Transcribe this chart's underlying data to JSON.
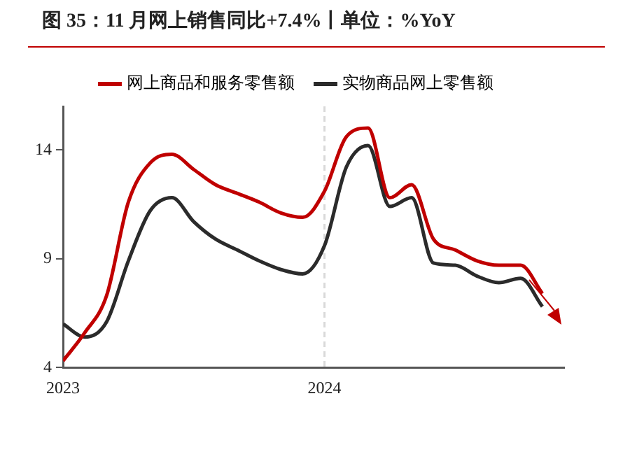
{
  "chart_data": {
    "type": "line",
    "title": "图 35：11 月网上销售同比+7.4%丨单位：%YoY",
    "x": [
      "2023-01",
      "2023-02",
      "2023-03",
      "2023-04",
      "2023-05",
      "2023-06",
      "2023-07",
      "2023-08",
      "2023-09",
      "2023-10",
      "2023-11",
      "2023-12",
      "2024-01",
      "2024-02",
      "2024-03",
      "2024-04",
      "2024-05",
      "2024-06",
      "2024-07",
      "2024-08",
      "2024-09",
      "2024-10",
      "2024-11"
    ],
    "series": [
      {
        "name": "网上商品和服务零售额",
        "color": "#c00000",
        "values": [
          4.3,
          5.6,
          7.3,
          11.6,
          13.4,
          13.8,
          13.1,
          12.4,
          12.0,
          11.6,
          11.1,
          10.9,
          12.1,
          14.6,
          15.0,
          11.8,
          12.4,
          9.9,
          9.4,
          8.9,
          8.7,
          8.7,
          7.4
        ]
      },
      {
        "name": "实物商品网上零售额",
        "color": "#2b2b2b",
        "values": [
          6.0,
          5.4,
          6.1,
          8.9,
          11.2,
          11.8,
          10.7,
          9.9,
          9.4,
          8.9,
          8.5,
          8.3,
          9.6,
          13.2,
          14.2,
          11.4,
          11.8,
          8.8,
          8.7,
          8.2,
          7.9,
          8.1,
          6.8
        ]
      }
    ],
    "xlim": [
      "2023-01",
      "2024-12"
    ],
    "xticks": [
      "2023",
      "2024"
    ],
    "ylim": [
      4,
      16
    ],
    "yticks": [
      4,
      9,
      14
    ],
    "ref_lines": [
      {
        "axis": "x",
        "value": "2024-01",
        "color": "#d9d9d9",
        "line_style": "dashed"
      }
    ],
    "grid": false,
    "legend": "top",
    "marker": "none",
    "line_style": "solid"
  }
}
